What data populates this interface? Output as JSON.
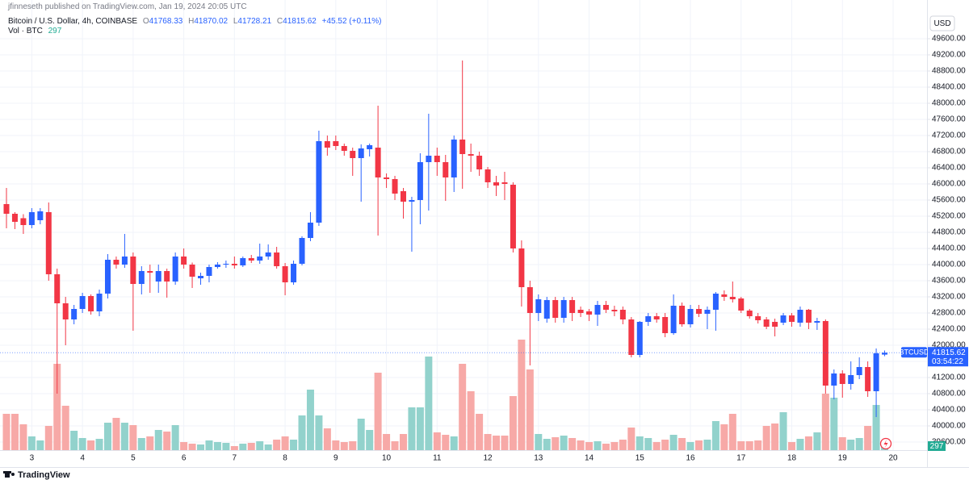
{
  "header": {
    "published": "jfinneseth published on TradingView.com, Jan 19, 2024 20:05 UTC"
  },
  "footer": {
    "brand": "TradingView"
  },
  "chart_data": {
    "type": "candlestick",
    "title": "Bitcoin / U.S. Dollar, 4h, COINBASE",
    "ohlc_letters": {
      "open": "O",
      "high": "H",
      "low": "L",
      "close": "C"
    },
    "change": "+45.52 (+0.11%)",
    "volume_title": "Vol · BTC",
    "currency": "USD",
    "symbol": "BTCUSD",
    "countdown": "03:54:22",
    "up_color": "#2962ff",
    "down_color": "#f23645",
    "volume_up_color": "#92d2cc",
    "volume_down_color": "#f7a9a7",
    "grid": true,
    "categories": [
      null,
      null,
      null,
      "3",
      null,
      null,
      null,
      null,
      null,
      "4",
      null,
      null,
      null,
      null,
      null,
      "5",
      null,
      null,
      null,
      null,
      null,
      "6",
      null,
      null,
      null,
      null,
      null,
      "7",
      null,
      null,
      null,
      null,
      null,
      "8",
      null,
      null,
      null,
      null,
      null,
      "9",
      null,
      null,
      null,
      null,
      null,
      "10",
      null,
      null,
      null,
      null,
      null,
      "11",
      null,
      null,
      null,
      null,
      null,
      "12",
      null,
      null,
      null,
      null,
      null,
      "13",
      null,
      null,
      null,
      null,
      null,
      "14",
      null,
      null,
      null,
      null,
      null,
      "15",
      null,
      null,
      null,
      null,
      null,
      "16",
      null,
      null,
      null,
      null,
      null,
      "17",
      null,
      null,
      null,
      null,
      null,
      "18",
      null,
      null,
      null,
      null,
      null,
      "19",
      null,
      null,
      null,
      null,
      null,
      "20"
    ],
    "open": [
      45500,
      45260,
      45150,
      44980,
      45100,
      45300,
      43760,
      43040,
      42640,
      42900,
      43220,
      42840,
      43280,
      44120,
      44000,
      44200,
      43520,
      43840,
      43580,
      43840,
      43580,
      44200,
      44000,
      43660,
      43720,
      43940,
      44000,
      44020,
      43980,
      44160,
      44100,
      44200,
      44300,
      43960,
      43560,
      44020,
      44660,
      45040,
      47060,
      47060,
      46940,
      46820,
      46640,
      46860,
      46900,
      46160,
      46120,
      45820,
      45560,
      45600,
      46540,
      46700,
      46540,
      46160,
      47100,
      46740,
      46700,
      46360,
      46040,
      46040,
      45980,
      44400,
      43440,
      42800,
      42660,
      43120,
      42680,
      43120,
      42880,
      42840,
      42760,
      43000,
      42880,
      42880,
      42640,
      41760,
      42580,
      42720,
      42700,
      42300,
      42980,
      42520,
      42900,
      42780,
      42880,
      43260,
      43200,
      43160,
      42860,
      42720,
      42640,
      42580,
      42560,
      42740,
      42560,
      42880,
      42560,
      42600,
      41000,
      41300,
      41040,
      41260,
      41460,
      40860,
      41768.33,
      null
    ],
    "high": [
      45900,
      45300,
      45250,
      45400,
      45400,
      45540,
      43900,
      43200,
      43000,
      43300,
      43260,
      43380,
      44260,
      44200,
      44760,
      44300,
      43960,
      44000,
      44000,
      43900,
      44300,
      44400,
      44050,
      43800,
      44000,
      44060,
      44100,
      44200,
      44200,
      44240,
      44520,
      44500,
      44440,
      44040,
      44100,
      44700,
      45300,
      47320,
      47200,
      47200,
      47000,
      46900,
      46980,
      47000,
      47940,
      46260,
      46200,
      45900,
      45680,
      46760,
      47740,
      46900,
      46720,
      47200,
      49060,
      47000,
      46800,
      46420,
      46200,
      46300,
      46040,
      44600,
      43600,
      43260,
      43200,
      43200,
      43200,
      43200,
      42960,
      42900,
      43100,
      43100,
      42980,
      42960,
      42700,
      42600,
      42800,
      42800,
      42800,
      43260,
      43060,
      43000,
      43000,
      42960,
      43320,
      43360,
      43580,
      43200,
      42900,
      42800,
      42700,
      42660,
      42800,
      42800,
      42960,
      42900,
      42680,
      42640,
      41400,
      41380,
      41600,
      41700,
      41600,
      41920,
      41870.02,
      null
    ],
    "low": [
      44900,
      44880,
      44760,
      44900,
      45000,
      43600,
      40800,
      42000,
      42520,
      42800,
      42760,
      42720,
      43160,
      43900,
      43920,
      42360,
      43260,
      43300,
      43300,
      43180,
      43500,
      43900,
      43420,
      43500,
      43560,
      43900,
      43920,
      43900,
      43940,
      44040,
      44020,
      44120,
      43900,
      43240,
      43500,
      43980,
      44580,
      44960,
      46700,
      46840,
      46700,
      46200,
      45560,
      46680,
      44720,
      45900,
      45600,
      45140,
      44320,
      45000,
      45340,
      46200,
      45580,
      45800,
      45880,
      46300,
      46200,
      45900,
      45700,
      45600,
      44300,
      42960,
      41500,
      42600,
      42560,
      42560,
      42560,
      42600,
      42700,
      42600,
      42480,
      42800,
      42720,
      42520,
      41700,
      41700,
      42480,
      42560,
      42200,
      42260,
      42460,
      42440,
      42700,
      42400,
      42360,
      43100,
      43060,
      42800,
      42660,
      42540,
      42400,
      42220,
      42500,
      42460,
      42460,
      42400,
      42380,
      40800,
      40660,
      40700,
      40900,
      41160,
      40720,
      40220,
      41728.21,
      null
    ],
    "close": [
      45260,
      45060,
      44980,
      45300,
      45320,
      43760,
      43040,
      42640,
      42900,
      43220,
      42840,
      43280,
      44120,
      44000,
      44200,
      43520,
      43840,
      43800,
      43840,
      43580,
      44200,
      44000,
      43700,
      43720,
      43940,
      44000,
      44020,
      43980,
      44160,
      44100,
      44200,
      44300,
      43960,
      43560,
      44020,
      44660,
      45040,
      47060,
      46900,
      46940,
      46820,
      46640,
      46880,
      46960,
      46160,
      46120,
      45760,
      45560,
      45600,
      46540,
      46700,
      46540,
      46160,
      47100,
      46740,
      46700,
      46360,
      46040,
      45960,
      46000,
      44400,
      43440,
      42800,
      43140,
      43120,
      42680,
      43120,
      42800,
      42800,
      42760,
      43000,
      42880,
      42840,
      42640,
      41760,
      42580,
      42720,
      42640,
      42300,
      42980,
      42520,
      42900,
      42780,
      42880,
      43280,
      43200,
      43140,
      42860,
      42720,
      42620,
      42460,
      42460,
      42740,
      42580,
      42880,
      42560,
      42600,
      41000,
      41300,
      41040,
      41260,
      41460,
      40860,
      41800,
      41815.62,
      null
    ],
    "volume": [
      1890,
      1890,
      1344,
      714,
      504,
      1260,
      4494,
      2310,
      1008,
      630,
      504,
      588,
      1428,
      1680,
      1428,
      1302,
      630,
      714,
      1050,
      966,
      1302,
      420,
      336,
      294,
      504,
      420,
      378,
      210,
      336,
      378,
      462,
      294,
      546,
      714,
      546,
      1806,
      3150,
      1806,
      1134,
      504,
      420,
      462,
      1638,
      1050,
      4032,
      840,
      462,
      840,
      2226,
      2226,
      4872,
      924,
      798,
      714,
      4494,
      3066,
      1890,
      840,
      756,
      756,
      2814,
      5754,
      4200,
      840,
      588,
      672,
      756,
      630,
      504,
      420,
      462,
      336,
      420,
      546,
      1176,
      714,
      630,
      420,
      546,
      798,
      630,
      420,
      504,
      546,
      1512,
      1344,
      1890,
      462,
      462,
      504,
      1260,
      1386,
      1974,
      420,
      588,
      714,
      924,
      2940,
      2730,
      672,
      546,
      630,
      1260,
      2352,
      297,
      null
    ],
    "ylim": [
      39260,
      50400
    ],
    "yticks": [
      {
        "value": 39600,
        "label": "39600.00"
      },
      {
        "value": 40000,
        "label": "40000.00"
      },
      {
        "value": 40400,
        "label": "40400.00"
      },
      {
        "value": 40800,
        "label": "40800.00"
      },
      {
        "value": 41200,
        "label": "41200.00"
      },
      {
        "value": 41600,
        "label": "41600.00"
      },
      {
        "value": 42000,
        "label": "42000.00"
      },
      {
        "value": 42400,
        "label": "42400.00"
      },
      {
        "value": 42800,
        "label": "42800.00"
      },
      {
        "value": 43200,
        "label": "43200.00"
      },
      {
        "value": 43600,
        "label": "43600.00"
      },
      {
        "value": 44000,
        "label": "44000.00"
      },
      {
        "value": 44400,
        "label": "44400.00"
      },
      {
        "value": 44800,
        "label": "44800.00"
      },
      {
        "value": 45200,
        "label": "45200.00"
      },
      {
        "value": 45600,
        "label": "45600.00"
      },
      {
        "value": 46000,
        "label": "46000.00"
      },
      {
        "value": 46400,
        "label": "46400.00"
      },
      {
        "value": 46800,
        "label": "46800.00"
      },
      {
        "value": 47200,
        "label": "47200.00"
      },
      {
        "value": 47600,
        "label": "47600.00"
      },
      {
        "value": 48000,
        "label": "48000.00"
      },
      {
        "value": 48400,
        "label": "48400.00"
      },
      {
        "value": 48800,
        "label": "48800.00"
      },
      {
        "value": 49200,
        "label": "49200.00"
      },
      {
        "value": 49600,
        "label": "49600.00"
      }
    ]
  }
}
